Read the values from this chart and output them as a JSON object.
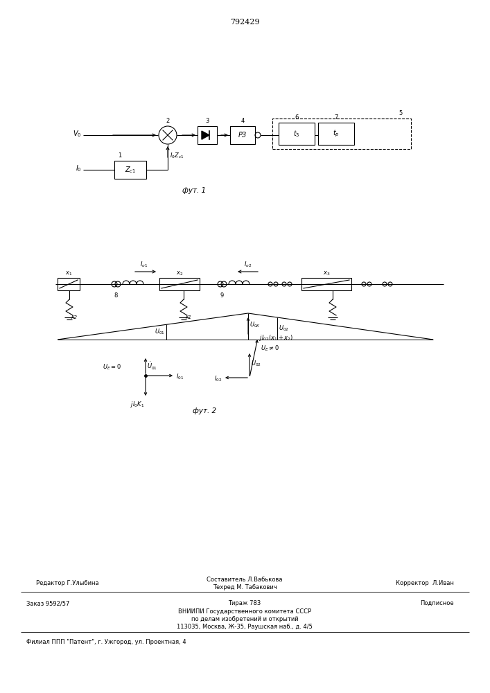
{
  "patent_number": "792429",
  "fig1_caption": "фут. 1",
  "fig2_caption": "фут. 2",
  "footer": {
    "editor": "Редактор Г.Улыбина",
    "composer": "Составитель Л.Вабькова",
    "techred": "Техред М. Табакович",
    "corrector": "Корректор  Л.Иван",
    "order": "Заказ 9592/57",
    "tirazh": "Тираж 783",
    "podpisnoe": "Подписное",
    "vniip1": "ВНИИПИ Государственного комитета СССР",
    "vniip2": "по делам изобретений и открытий",
    "vniip3": "113035, Москва, Ж-35, Раушская наб., д. 4/5",
    "filial": "Филиал ППП \"Патент\", г. Ужгород, ул. Проектная, 4"
  }
}
